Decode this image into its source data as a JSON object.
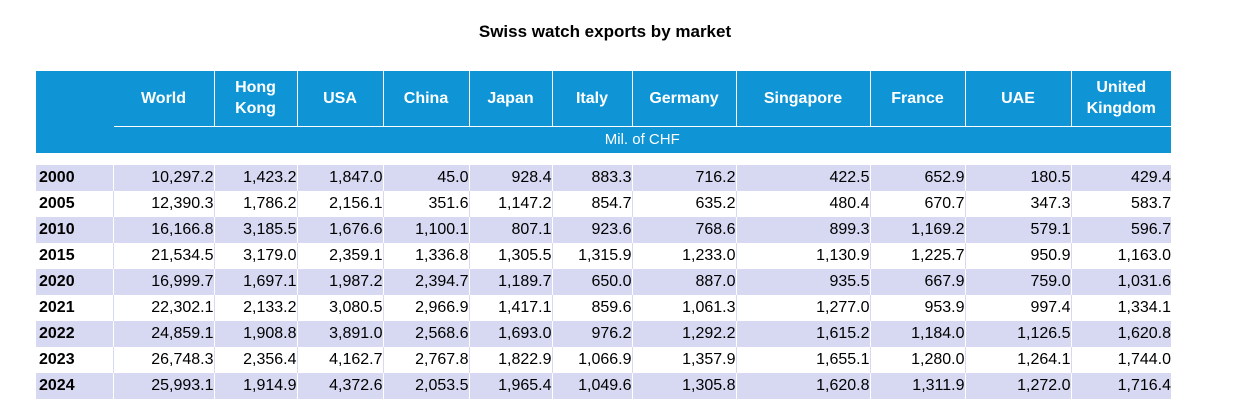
{
  "title": "Swiss watch exports by market",
  "units": "Mil. of CHF",
  "columns": [
    "World",
    "Hong Kong",
    "USA",
    "China",
    "Japan",
    "Italy",
    "Germany",
    "Singapore",
    "France",
    "UAE",
    "United Kingdom"
  ],
  "rows": [
    {
      "year": "2000",
      "values": [
        "10,297.2",
        "1,423.2",
        "1,847.0",
        "45.0",
        "928.4",
        "883.3",
        "716.2",
        "422.5",
        "652.9",
        "180.5",
        "429.4"
      ]
    },
    {
      "year": "2005",
      "values": [
        "12,390.3",
        "1,786.2",
        "2,156.1",
        "351.6",
        "1,147.2",
        "854.7",
        "635.2",
        "480.4",
        "670.7",
        "347.3",
        "583.7"
      ]
    },
    {
      "year": "2010",
      "values": [
        "16,166.8",
        "3,185.5",
        "1,676.6",
        "1,100.1",
        "807.1",
        "923.6",
        "768.6",
        "899.3",
        "1,169.2",
        "579.1",
        "596.7"
      ]
    },
    {
      "year": "2015",
      "values": [
        "21,534.5",
        "3,179.0",
        "2,359.1",
        "1,336.8",
        "1,305.5",
        "1,315.9",
        "1,233.0",
        "1,130.9",
        "1,225.7",
        "950.9",
        "1,163.0"
      ]
    },
    {
      "year": "2020",
      "values": [
        "16,999.7",
        "1,697.1",
        "1,987.2",
        "2,394.7",
        "1,189.7",
        "650.0",
        "887.0",
        "935.5",
        "667.9",
        "759.0",
        "1,031.6"
      ]
    },
    {
      "year": "2021",
      "values": [
        "22,302.1",
        "2,133.2",
        "3,080.5",
        "2,966.9",
        "1,417.1",
        "859.6",
        "1,061.3",
        "1,277.0",
        "953.9",
        "997.4",
        "1,334.1"
      ]
    },
    {
      "year": "2022",
      "values": [
        "24,859.1",
        "1,908.8",
        "3,891.0",
        "2,568.6",
        "1,693.0",
        "976.2",
        "1,292.2",
        "1,615.2",
        "1,184.0",
        "1,126.5",
        "1,620.8"
      ]
    },
    {
      "year": "2023",
      "values": [
        "26,748.3",
        "2,356.4",
        "4,162.7",
        "2,767.8",
        "1,822.9",
        "1,066.9",
        "1,357.9",
        "1,655.1",
        "1,280.0",
        "1,264.1",
        "1,744.0"
      ]
    },
    {
      "year": "2024",
      "values": [
        "25,993.1",
        "1,914.9",
        "4,372.6",
        "2,053.5",
        "1,965.4",
        "1,049.6",
        "1,305.8",
        "1,620.8",
        "1,311.9",
        "1,272.0",
        "1,716.4"
      ]
    }
  ],
  "colors": {
    "header": "#0f95d6",
    "band": "#d6d9f1"
  }
}
